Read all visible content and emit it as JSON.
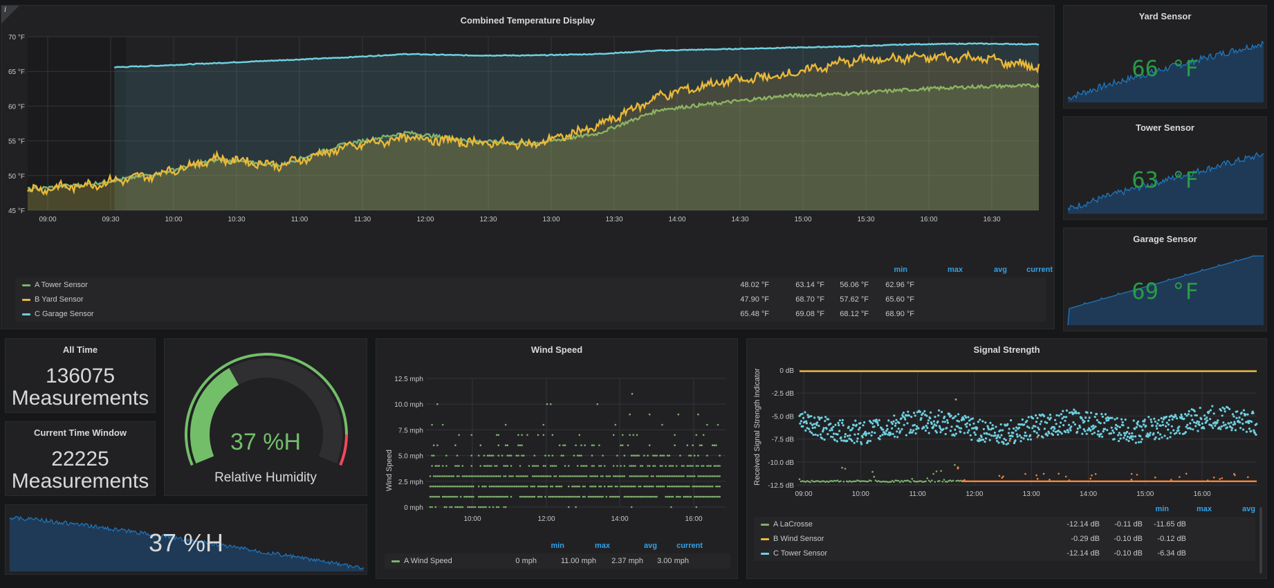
{
  "colors": {
    "green": "#7eb26d",
    "yellow": "#eab839",
    "cyan": "#6ed0e0",
    "orange": "#ef843c",
    "blue": "#1f78c1",
    "legend_header": "#33a2e5",
    "stat_green": "#299c46"
  },
  "info_icon": "i",
  "combined": {
    "title": "Combined Temperature Display",
    "y_ticks": [
      "70 °F",
      "65 °F",
      "60 °F",
      "55 °F",
      "50 °F",
      "45 °F"
    ],
    "x_ticks": [
      "09:00",
      "09:30",
      "10:00",
      "10:30",
      "11:00",
      "11:30",
      "12:00",
      "12:30",
      "13:00",
      "13:30",
      "14:00",
      "14:30",
      "15:00",
      "15:30",
      "16:00",
      "16:30"
    ],
    "legend_headers": [
      "min",
      "max",
      "avg",
      "current"
    ],
    "legend": [
      {
        "name": "A Tower Sensor",
        "min": "48.02 °F",
        "max": "63.14 °F",
        "avg": "56.06 °F",
        "current": "62.96 °F",
        "color": "#7eb26d"
      },
      {
        "name": "B Yard Sensor",
        "min": "47.90 °F",
        "max": "68.70 °F",
        "avg": "57.62 °F",
        "current": "65.60 °F",
        "color": "#eab839"
      },
      {
        "name": "C Garage Sensor",
        "min": "65.48 °F",
        "max": "69.08 °F",
        "avg": "68.12 °F",
        "current": "68.90 °F",
        "color": "#6ed0e0"
      }
    ]
  },
  "chart_data": [
    {
      "type": "line",
      "title": "Combined Temperature Display",
      "ylim": [
        45,
        70
      ],
      "x": [
        "08:50",
        "09:30",
        "10:00",
        "10:30",
        "11:00",
        "11:30",
        "12:00",
        "12:30",
        "13:00",
        "13:30",
        "14:00",
        "14:30",
        "15:00",
        "15:30",
        "16:00",
        "16:30",
        "16:50"
      ],
      "series": [
        {
          "name": "A Tower Sensor",
          "values": [
            48.0,
            48.8,
            50.2,
            52.3,
            51.5,
            54.5,
            56.2,
            55.0,
            54.6,
            56.0,
            59.5,
            60.5,
            61.5,
            61.8,
            62.4,
            62.8,
            62.96
          ]
        },
        {
          "name": "B Yard Sensor",
          "values": [
            47.9,
            48.7,
            50.1,
            52.5,
            51.5,
            54.0,
            55.5,
            54.8,
            54.5,
            57.0,
            61.5,
            63.5,
            64.5,
            66.5,
            67.0,
            67.0,
            65.6
          ]
        },
        {
          "name": "C Garage Sensor",
          "values": [
            null,
            65.48,
            65.8,
            66.2,
            66.6,
            67.0,
            67.5,
            67.3,
            67.3,
            67.5,
            68.0,
            68.2,
            68.4,
            68.6,
            68.9,
            69.0,
            68.9
          ]
        }
      ]
    },
    {
      "type": "scatter",
      "title": "Wind Speed",
      "ylabel": "Wind Speed",
      "ylim": [
        0,
        12.5
      ],
      "y_ticks": [
        "12.5 mph",
        "10.0 mph",
        "7.5 mph",
        "5.0 mph",
        "2.5 mph",
        "0 mph"
      ],
      "x_ticks": [
        "10:00",
        "12:00",
        "14:00",
        "16:00"
      ],
      "series": [
        {
          "name": "A Wind Speed",
          "values_levels": [
            0,
            1,
            2,
            3,
            4,
            5,
            6,
            7,
            8,
            9,
            10,
            11
          ]
        }
      ]
    },
    {
      "type": "scatter",
      "title": "Signal Strength",
      "ylabel": "Received Signal Strength Indicator",
      "ylim": [
        -12.5,
        0
      ],
      "y_ticks": [
        "0 dB",
        "-2.5 dB",
        "-5.0 dB",
        "-7.5 dB",
        "-10.0 dB",
        "-12.5 dB"
      ],
      "x_ticks": [
        "09:00",
        "10:00",
        "11:00",
        "12:00",
        "13:00",
        "14:00",
        "15:00",
        "16:00"
      ],
      "series": [
        {
          "name": "A LaCrosse",
          "range": [
            -12.14,
            -0.11
          ]
        },
        {
          "name": "B Wind Sensor",
          "range": [
            -0.29,
            -0.1
          ]
        },
        {
          "name": "C Tower Sensor",
          "range": [
            -12.14,
            -0.1
          ]
        }
      ]
    }
  ],
  "sparks": [
    {
      "title": "Yard Sensor",
      "value": "66 °F"
    },
    {
      "title": "Tower Sensor",
      "value": "63 °F"
    },
    {
      "title": "Garage Sensor",
      "value": "69 °F"
    }
  ],
  "stats": {
    "all_time": {
      "title": "All Time",
      "number": "136075",
      "unit": "Measurements"
    },
    "window": {
      "title": "Current Time Window",
      "number": "22225",
      "unit": "Measurements"
    }
  },
  "gauge": {
    "value": "37 %H",
    "label": "Relative Humidity",
    "percent": 37
  },
  "humidity_spark": {
    "value": "37 %H"
  },
  "wind": {
    "title": "Wind Speed",
    "ylabel": "Wind Speed",
    "y_ticks": [
      "12.5 mph",
      "10.0 mph",
      "7.5 mph",
      "5.0 mph",
      "2.5 mph",
      "0 mph"
    ],
    "x_ticks": [
      "10:00",
      "12:00",
      "14:00",
      "16:00"
    ],
    "legend_headers": [
      "min",
      "max",
      "avg",
      "current"
    ],
    "legend": [
      {
        "name": "A Wind Speed",
        "min": "0 mph",
        "max": "11.00 mph",
        "avg": "2.37 mph",
        "current": "3.00 mph",
        "color": "#7eb26d"
      }
    ]
  },
  "signal": {
    "title": "Signal Strength",
    "ylabel": "Received Signal Strength Indicator",
    "y_ticks": [
      "0 dB",
      "-2.5 dB",
      "-5.0 dB",
      "-7.5 dB",
      "-10.0 dB",
      "-12.5 dB"
    ],
    "x_ticks": [
      "09:00",
      "10:00",
      "11:00",
      "12:00",
      "13:00",
      "14:00",
      "15:00",
      "16:00"
    ],
    "legend_headers": [
      "min",
      "max",
      "avg"
    ],
    "legend": [
      {
        "name": "A LaCrosse",
        "min": "-12.14 dB",
        "max": "-0.11 dB",
        "avg": "-11.65 dB",
        "color": "#7eb26d"
      },
      {
        "name": "B Wind Sensor",
        "min": "-0.29 dB",
        "max": "-0.10 dB",
        "avg": "-0.12 dB",
        "color": "#eab839"
      },
      {
        "name": "C Tower Sensor",
        "min": "-12.14 dB",
        "max": "-0.10 dB",
        "avg": "-6.34 dB",
        "color": "#6ed0e0"
      }
    ]
  }
}
